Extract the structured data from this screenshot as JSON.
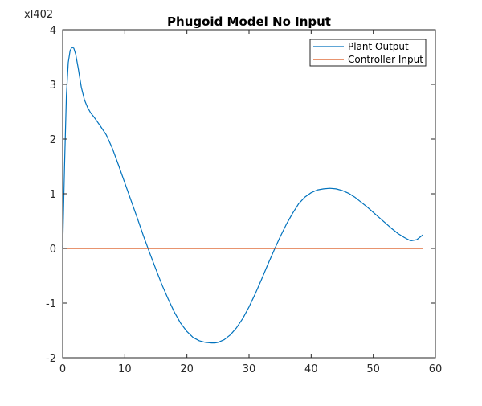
{
  "chart_data": {
    "type": "line",
    "title": "Phugoid Model No Input",
    "xlabel": "",
    "ylabel": "",
    "exponent_label": "xl402",
    "xlim": [
      0,
      60
    ],
    "ylim": [
      -2,
      4
    ],
    "xticks": [
      0,
      10,
      20,
      30,
      40,
      50,
      60
    ],
    "yticks": [
      -2,
      -1,
      0,
      1,
      2,
      3,
      4
    ],
    "grid": false,
    "legend_position": "top-right",
    "series": [
      {
        "name": "Plant Output",
        "color": "#0072BD",
        "x": [
          0,
          0.3,
          0.6,
          0.9,
          1.2,
          1.5,
          1.8,
          2.1,
          2.5,
          3,
          3.5,
          4,
          4.5,
          5,
          5.5,
          6,
          7,
          8,
          9,
          10,
          11,
          12,
          13,
          14,
          15,
          16,
          17,
          18,
          19,
          20,
          21,
          22,
          23,
          24,
          24.5,
          25,
          26,
          27,
          28,
          29,
          30,
          31,
          32,
          33,
          34,
          35,
          36,
          37,
          38,
          39,
          40,
          41,
          42,
          43,
          44,
          45,
          46,
          47,
          48,
          49,
          50,
          51,
          52,
          53,
          54,
          55,
          56,
          57,
          58
        ],
        "y": [
          0,
          1.5,
          2.8,
          3.4,
          3.62,
          3.68,
          3.66,
          3.55,
          3.3,
          2.95,
          2.72,
          2.58,
          2.48,
          2.41,
          2.33,
          2.25,
          2.08,
          1.83,
          1.52,
          1.2,
          0.88,
          0.56,
          0.23,
          -0.08,
          -0.38,
          -0.67,
          -0.93,
          -1.17,
          -1.37,
          -1.52,
          -1.63,
          -1.69,
          -1.72,
          -1.73,
          -1.73,
          -1.72,
          -1.67,
          -1.58,
          -1.45,
          -1.28,
          -1.07,
          -0.83,
          -0.57,
          -0.3,
          -0.04,
          0.21,
          0.44,
          0.64,
          0.82,
          0.94,
          1.02,
          1.07,
          1.09,
          1.1,
          1.09,
          1.06,
          1.01,
          0.94,
          0.85,
          0.76,
          0.66,
          0.56,
          0.46,
          0.36,
          0.27,
          0.2,
          0.14,
          0.16,
          0.25
        ]
      },
      {
        "name": "Controller Input",
        "color": "#D95319",
        "x": [
          0,
          58
        ],
        "y": [
          0,
          0
        ]
      }
    ]
  }
}
